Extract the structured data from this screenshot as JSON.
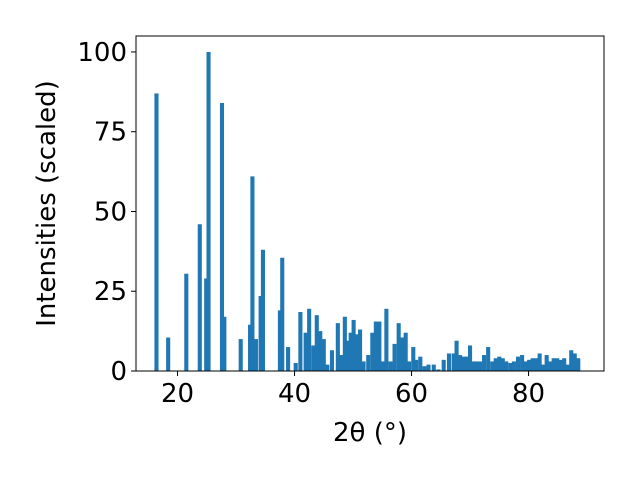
{
  "chart_data": {
    "type": "bar",
    "title": "",
    "xlabel": "2θ (°)",
    "ylabel": "Intensities (scaled)",
    "xlim": [
      12.9,
      92.9
    ],
    "ylim": [
      0,
      105
    ],
    "xticks": [
      20,
      40,
      60,
      80
    ],
    "yticks": [
      0,
      25,
      50,
      75,
      100
    ],
    "grid": false,
    "legend": "none",
    "bar_width": 0.7,
    "bar_color": "#1f77b4",
    "x": [
      16.4,
      18.4,
      21.5,
      23.8,
      24.9,
      25.3,
      27.6,
      28.0,
      30.8,
      32.4,
      32.8,
      33.4,
      34.2,
      34.6,
      37.5,
      37.9,
      38.9,
      40.2,
      41.0,
      41.9,
      42.5,
      43.2,
      43.8,
      44.4,
      45.0,
      45.6,
      46.4,
      47.4,
      48.0,
      48.6,
      49.1,
      49.6,
      50.1,
      50.6,
      51.2,
      51.8,
      52.6,
      53.3,
      53.9,
      54.5,
      55.1,
      55.7,
      56.4,
      57.1,
      57.8,
      58.4,
      59.0,
      59.6,
      60.3,
      60.8,
      61.5,
      62.2,
      62.9,
      63.8,
      64.6,
      65.5,
      66.4,
      67.2,
      67.7,
      68.3,
      68.9,
      69.4,
      70.0,
      70.6,
      71.1,
      71.7,
      72.4,
      73.1,
      73.8,
      74.4,
      75.0,
      75.6,
      76.2,
      76.9,
      77.5,
      78.2,
      78.9,
      79.5,
      80.1,
      80.7,
      81.3,
      81.9,
      82.5,
      83.1,
      83.7,
      84.3,
      84.9,
      85.5,
      86.1,
      86.7,
      87.3,
      87.9,
      88.5
    ],
    "values": [
      87,
      10.5,
      30.5,
      46,
      29,
      100,
      84,
      17,
      10,
      14.5,
      61,
      10,
      23.5,
      38,
      19,
      35.5,
      7.5,
      2.5,
      18.5,
      12,
      19.5,
      8,
      17.5,
      12.5,
      10,
      2,
      6.5,
      15,
      5,
      17,
      9.5,
      12,
      16,
      11.5,
      13,
      3,
      5,
      12,
      15.5,
      15.5,
      3,
      19.5,
      3,
      8.5,
      15,
      10.5,
      12,
      3,
      7.5,
      3.5,
      4.5,
      1.5,
      2,
      2,
      0.5,
      3.5,
      5.5,
      5.5,
      9.5,
      5,
      4.5,
      4.5,
      8,
      3,
      3,
      3,
      5,
      7.5,
      3,
      4,
      4.5,
      4,
      3,
      2.5,
      3,
      4.5,
      5,
      3,
      3.5,
      4,
      4,
      5.5,
      2,
      5,
      3,
      4,
      4,
      3.5,
      4,
      2,
      6.5,
      5.5,
      4
    ]
  }
}
